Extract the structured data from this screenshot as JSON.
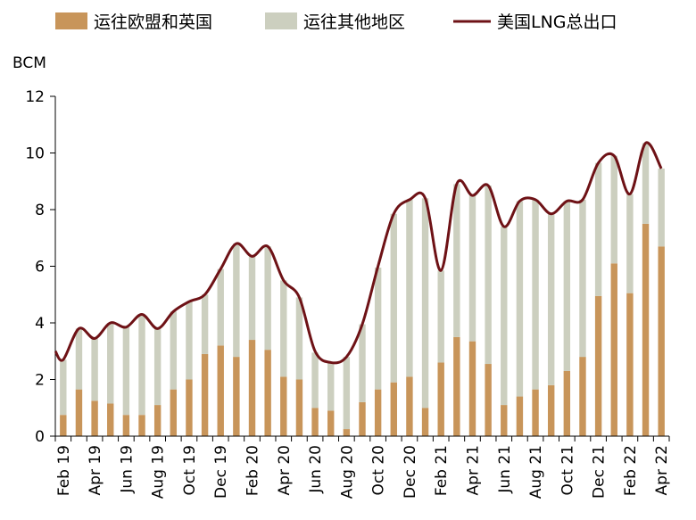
{
  "chart_data": {
    "type": "bar",
    "unit": "BCM",
    "ylim": [
      0,
      12
    ],
    "yticks": [
      0,
      2,
      4,
      6,
      8,
      10,
      12
    ],
    "legend": [
      {
        "name": "运往欧盟和英国",
        "kind": "bar",
        "color": "#c8955a"
      },
      {
        "name": "运往其他地区",
        "kind": "bar",
        "color": "#cccfbf"
      },
      {
        "name": "美国LNG总出口",
        "kind": "line",
        "color": "#6e1216"
      }
    ],
    "categories": [
      "Feb 19",
      "Mar 19",
      "Apr 19",
      "May 19",
      "Jun 19",
      "Jul 19",
      "Aug 19",
      "Sep 19",
      "Oct 19",
      "Nov 19",
      "Dec 19",
      "Jan 20",
      "Feb 20",
      "Mar 20",
      "Apr 20",
      "May 20",
      "Jun 20",
      "Jul 20",
      "Aug 20",
      "Sep 20",
      "Oct 20",
      "Nov 20",
      "Dec 20",
      "Jan 21",
      "Feb 21",
      "Mar 21",
      "Apr 21",
      "May 21",
      "Jun 21",
      "Jul 21",
      "Aug 21",
      "Sep 21",
      "Oct 21",
      "Nov 21",
      "Dec 21",
      "Jan 22",
      "Feb 22",
      "Mar 22",
      "Apr 22"
    ],
    "tick_labels": [
      "Feb 19",
      "Apr 19",
      "Jun 19",
      "Aug 19",
      "Oct 19",
      "Dec 19",
      "Feb 20",
      "Apr 20",
      "Jun 20",
      "Aug 20",
      "Oct 20",
      "Dec 20",
      "Feb 21",
      "Apr 21",
      "Jun 21",
      "Aug 21",
      "Oct 21",
      "Dec 21",
      "Feb 22",
      "Apr 22"
    ],
    "series": [
      {
        "name": "运往欧盟和英国",
        "values": [
          0.75,
          1.65,
          1.25,
          1.15,
          0.75,
          0.75,
          1.1,
          1.65,
          2.0,
          2.9,
          3.2,
          2.8,
          3.4,
          3.05,
          2.1,
          2.0,
          1.0,
          0.9,
          0.25,
          1.2,
          1.65,
          1.9,
          2.1,
          1.0,
          2.6,
          3.5,
          3.35,
          2.55,
          1.1,
          1.4,
          1.65,
          1.8,
          2.3,
          2.8,
          4.95,
          6.1,
          5.05,
          7.5,
          6.7
        ]
      },
      {
        "name": "运往其他地区",
        "values": [
          1.95,
          2.15,
          2.2,
          2.85,
          3.1,
          3.55,
          2.7,
          2.75,
          2.75,
          2.1,
          2.7,
          4.0,
          2.95,
          3.65,
          3.4,
          2.9,
          1.95,
          1.7,
          2.55,
          2.75,
          4.3,
          5.95,
          6.25,
          7.4,
          3.25,
          5.4,
          5.15,
          6.3,
          6.3,
          6.9,
          6.7,
          6.05,
          6.0,
          5.55,
          4.7,
          3.8,
          3.5,
          2.85,
          2.75
        ]
      },
      {
        "name": "美国LNG总出口",
        "values": [
          2.7,
          3.8,
          3.45,
          4.0,
          3.85,
          4.3,
          3.8,
          4.4,
          4.75,
          5.0,
          5.9,
          6.8,
          6.35,
          6.7,
          5.5,
          4.9,
          3.0,
          2.6,
          2.8,
          3.95,
          6.0,
          7.85,
          8.35,
          8.4,
          5.85,
          8.9,
          8.5,
          8.85,
          7.4,
          8.3,
          8.35,
          7.85,
          8.3,
          8.35,
          9.65,
          9.9,
          8.55,
          10.35,
          9.45
        ]
      }
    ]
  }
}
